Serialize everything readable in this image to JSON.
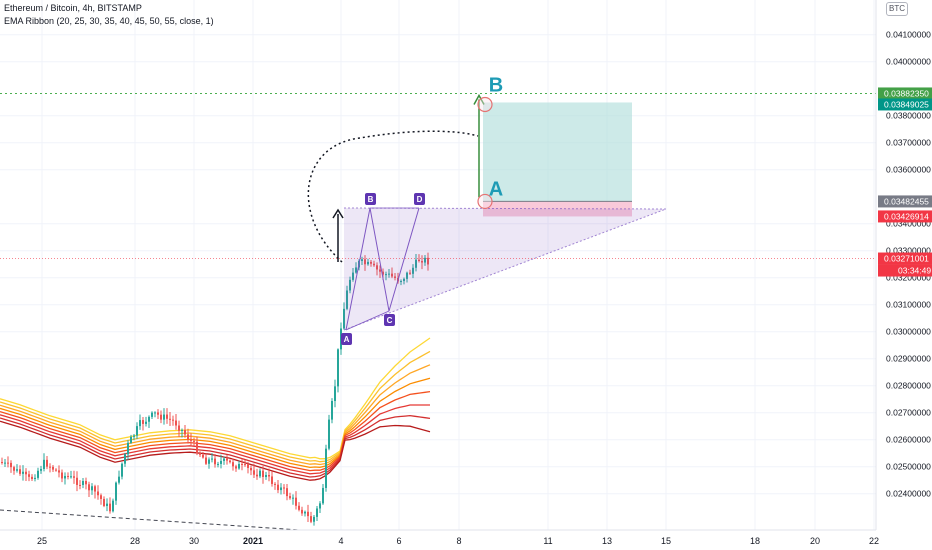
{
  "header": {
    "symbol_line": "Ethereum / Bitcoin, 4h, BITSTAMP",
    "indicator_line": "EMA Ribbon (20, 25, 30, 35, 40, 45, 50, 55, close, 1)",
    "currency": "BTC"
  },
  "colors": {
    "up": "#26a69a",
    "down": "#ef5350",
    "target_line": "#4caf50",
    "pattern": "#7e57c2",
    "target_zone": "#b2dfdb",
    "stop_zone": "#f8bbd0",
    "label_target": "#009688",
    "label_stop": "#f23645",
    "last_price": "#f23645",
    "ribbon": [
      "#fdd835",
      "#fbc02d",
      "#ffa726",
      "#fb8c00",
      "#f4511e",
      "#e53935",
      "#d32f2f",
      "#b71c1c"
    ]
  },
  "chart_data": {
    "type": "candlestick",
    "x_axis_labels": [
      "25",
      "28",
      "30",
      "2021",
      "4",
      "6",
      "8",
      "11",
      "13",
      "15",
      "18",
      "20",
      "22"
    ],
    "y_axis_ticks": [
      "0.04100000",
      "0.04000000",
      "0.03800000",
      "0.03700000",
      "0.03600000",
      "0.03400000",
      "0.03300000",
      "0.03200000",
      "0.03100000",
      "0.03000000",
      "0.02900000",
      "0.02800000",
      "0.02700000",
      "0.02600000",
      "0.02500000",
      "0.02400000"
    ],
    "ylim": [
      0.0236,
      0.0418
    ],
    "price_labels": [
      {
        "value": 0.0388235,
        "text": "0.03882350",
        "role": "target"
      },
      {
        "value": 0.03849025,
        "text": "0.03849025",
        "role": "target"
      },
      {
        "value": 0.03482455,
        "text": "0.03482455",
        "role": "entry"
      },
      {
        "value": 0.03426914,
        "text": "0.03426914",
        "role": "stop"
      },
      {
        "value": 0.03271001,
        "text": "0.03271001",
        "role": "last"
      }
    ],
    "countdown": "03:34:49",
    "pattern_points": [
      {
        "label": "A",
        "value": 0.0305
      },
      {
        "label": "B",
        "value": 0.0348
      },
      {
        "label": "C",
        "value": 0.0311
      },
      {
        "label": "D",
        "value": 0.0348
      }
    ],
    "annotations": [
      {
        "label": "A",
        "value": 0.03482455
      },
      {
        "label": "B",
        "value": 0.0388235
      }
    ]
  }
}
